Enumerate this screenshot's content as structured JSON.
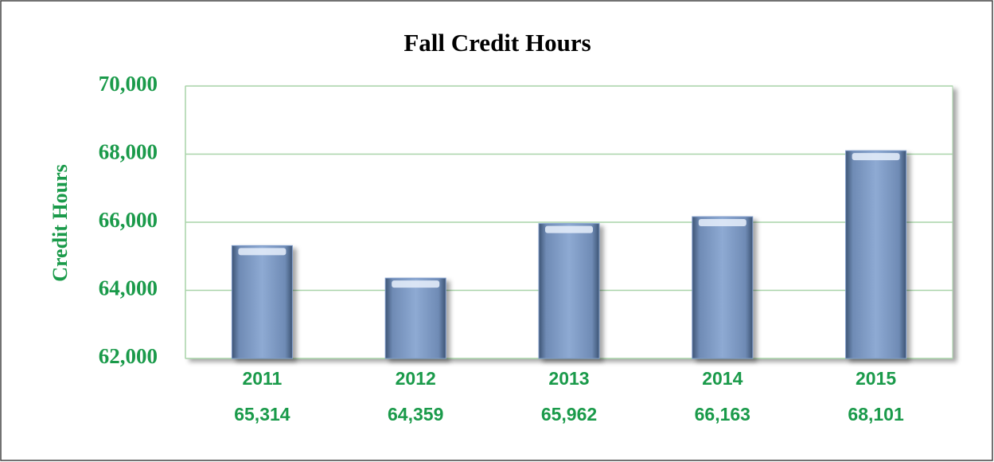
{
  "chart_data": {
    "type": "bar",
    "title": "Fall Credit Hours",
    "y_label": "Credit Hours",
    "categories": [
      "2011",
      "2012",
      "2013",
      "2014",
      "2015"
    ],
    "values": [
      65314,
      64359,
      65962,
      66163,
      68101
    ],
    "value_labels": [
      "65,314",
      "64,359",
      "65,962",
      "66,163",
      "68,101"
    ],
    "color": "#7f9ccb",
    "ylim": [
      62000,
      70000
    ],
    "yticks": [
      {
        "value": 62000,
        "label": "62,000"
      },
      {
        "value": 64000,
        "label": "64,000"
      },
      {
        "value": 66000,
        "label": "66,000"
      },
      {
        "value": 68000,
        "label": "68,000"
      },
      {
        "value": 70000,
        "label": "70,000"
      }
    ],
    "grid": true
  }
}
